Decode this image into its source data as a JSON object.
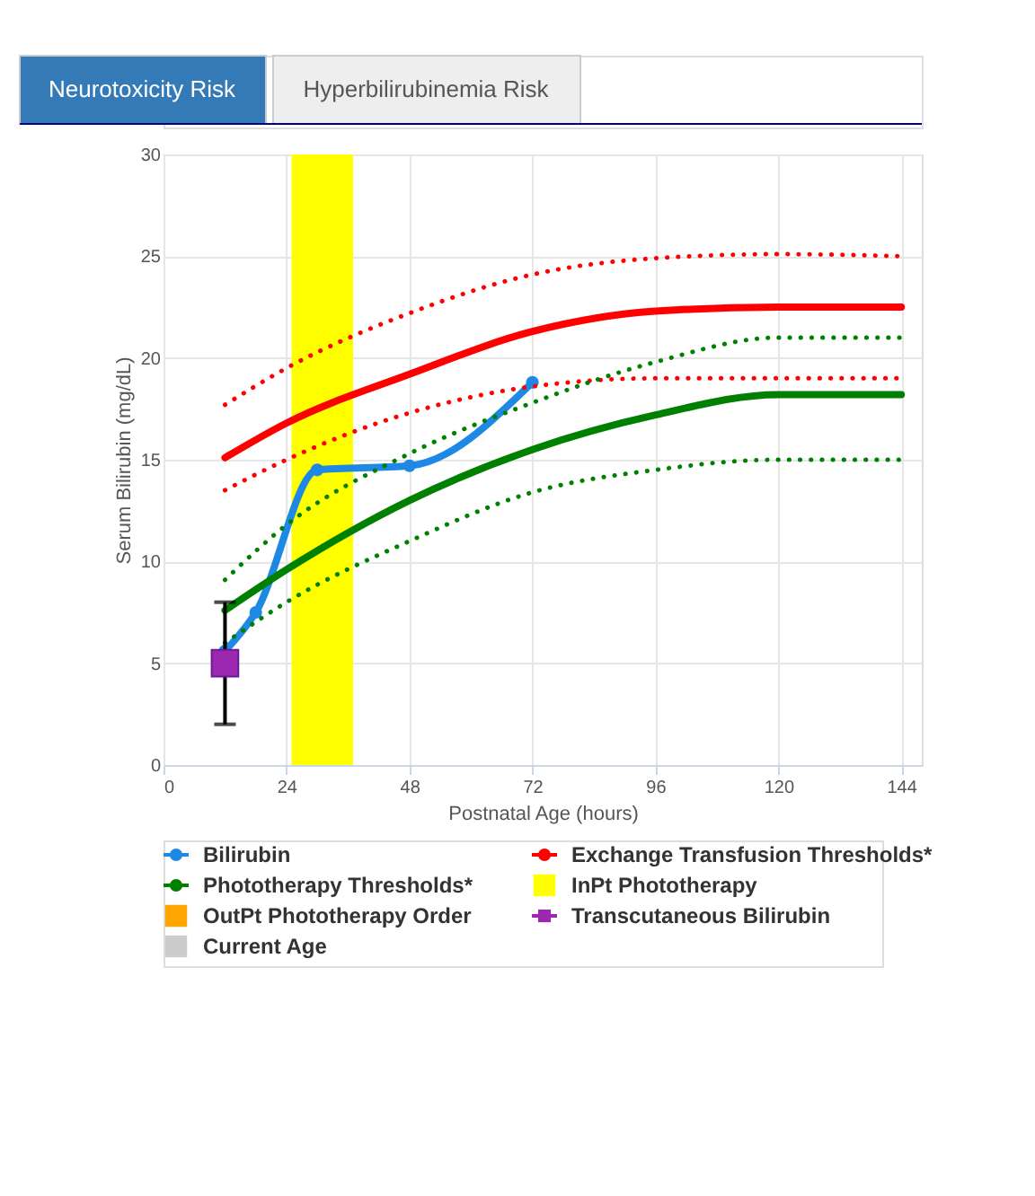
{
  "chart_data": {
    "type": "line",
    "xlabel": "Postnatal Age (hours)",
    "ylabel": "Serum Bilirubin (mg/dL)",
    "annotations": [
      "Neurotoxicity Risk",
      "Hyperbilirubinemia Risk"
    ],
    "xlim": [
      0,
      148
    ],
    "xticks": [
      0,
      24,
      48,
      72,
      96,
      120,
      144
    ],
    "ylim": [
      0,
      30
    ],
    "yticks": [
      0,
      5,
      10,
      15,
      20,
      25,
      30
    ],
    "grid": true,
    "legend": "bottom",
    "bands": [
      {
        "axis": "x",
        "from": 25,
        "to": 37,
        "label": "InPt Phototherapy",
        "color": "#ffff00"
      }
    ],
    "series": [
      {
        "name": "Bilirubin",
        "color": "#1e88e5",
        "marker": "circle",
        "line_style": "solid",
        "x": [
          12,
          18,
          30,
          48,
          72
        ],
        "values": [
          5.6,
          7.5,
          14.5,
          14.7,
          18.8
        ]
      },
      {
        "name": "Exchange Transfusion Thresholds*",
        "color": "#ff0000",
        "marker": "none",
        "line_style": "solid",
        "x": [
          12,
          24,
          48,
          72,
          96,
          120,
          144
        ],
        "values": [
          15.1,
          16.8,
          19.2,
          21.3,
          22.3,
          22.5,
          22.5
        ]
      },
      {
        "name": "Phototherapy Thresholds*",
        "color": "#008000",
        "marker": "none",
        "line_style": "solid",
        "x": [
          12,
          24,
          48,
          72,
          96,
          120,
          144
        ],
        "values": [
          7.6,
          9.6,
          13.0,
          15.5,
          17.2,
          18.2,
          18.2
        ]
      },
      {
        "color": "#ff0000",
        "marker": "none",
        "line_style": "dotted",
        "x": [
          12,
          24,
          48,
          72,
          96,
          120,
          144
        ],
        "values": [
          17.7,
          19.5,
          22.2,
          24.1,
          24.9,
          25.1,
          25.0
        ]
      },
      {
        "color": "#ff0000",
        "marker": "none",
        "line_style": "dotted",
        "x": [
          12,
          24,
          48,
          72,
          96,
          120,
          144
        ],
        "values": [
          13.5,
          15.0,
          17.3,
          18.6,
          19.0,
          19.0,
          19.0
        ]
      },
      {
        "color": "#008000",
        "marker": "none",
        "line_style": "dotted",
        "x": [
          12,
          24,
          48,
          72,
          96,
          120,
          144
        ],
        "values": [
          9.1,
          11.8,
          15.3,
          17.8,
          19.8,
          21.0,
          21.0
        ]
      },
      {
        "color": "#008000",
        "marker": "none",
        "line_style": "dotted",
        "x": [
          12,
          24,
          48,
          72,
          96,
          120,
          144
        ],
        "values": [
          6.0,
          8.0,
          11.0,
          13.4,
          14.5,
          15.0,
          15.0
        ]
      },
      {
        "name": "OutPt Phototherapy Order",
        "type": "bar",
        "color": "#ffa500"
      },
      {
        "name": "Transcutaneous Bilirubin",
        "type": "scatter",
        "color": "#9c27b0",
        "marker": "square",
        "x": [
          12
        ],
        "values": [
          5.0
        ],
        "errors": [
          [
            2,
            8
          ]
        ]
      },
      {
        "name": "Current Age",
        "type": "bar",
        "color": "#cccccc"
      }
    ]
  }
}
